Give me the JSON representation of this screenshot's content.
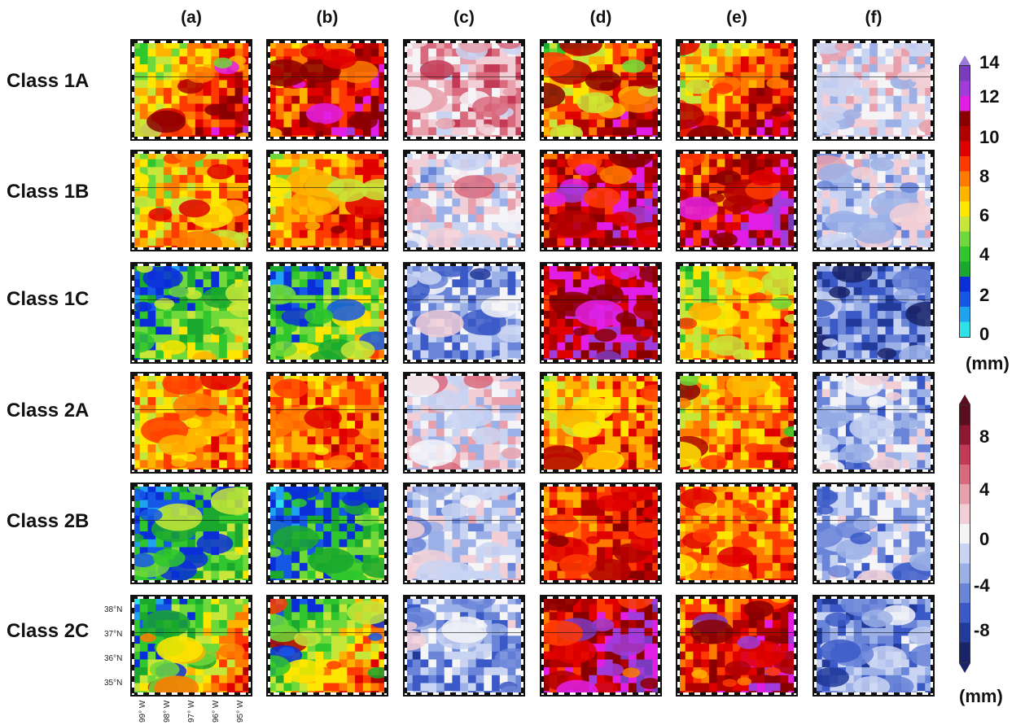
{
  "columns": [
    "(a)",
    "(b)",
    "(c)",
    "(d)",
    "(e)",
    "(f)"
  ],
  "rows": [
    "Class 1A",
    "Class 1B",
    "Class 1C",
    "Class 2A",
    "Class 2B",
    "Class 2C"
  ],
  "lat_labels": [
    "38°N",
    "37°N",
    "36°N",
    "35°N"
  ],
  "lon_labels": [
    "99° W",
    "98° W",
    "97° W",
    "96° W",
    "95° W"
  ],
  "precip_colorbar": {
    "ticks": [
      "14",
      "12",
      "10",
      "8",
      "6",
      "4",
      "2",
      "0"
    ],
    "unit": "(mm)",
    "colors": [
      "#2ee0e8",
      "#1fa3f0",
      "#1658e6",
      "#0a2fd8",
      "#1aa82e",
      "#2fc72d",
      "#6fd83a",
      "#c7e63a",
      "#ffe600",
      "#ffb400",
      "#ff7a00",
      "#ff3a00",
      "#e00000",
      "#b00000",
      "#8a0000",
      "#e21ee6",
      "#a13bd9",
      "#7a3bbf"
    ]
  },
  "diff_colorbar": {
    "ticks": [
      "8",
      "4",
      "0",
      "-4",
      "-8"
    ],
    "unit": "(mm)",
    "colors": [
      "#1a2468",
      "#223a9a",
      "#3b5ac7",
      "#6a84d8",
      "#9bb0e6",
      "#c9d4f2",
      "#f5f5f8",
      "#f2cfd6",
      "#e8a0ac",
      "#d96a7e",
      "#c23a55",
      "#8e1732",
      "#5a0e20"
    ]
  }
}
